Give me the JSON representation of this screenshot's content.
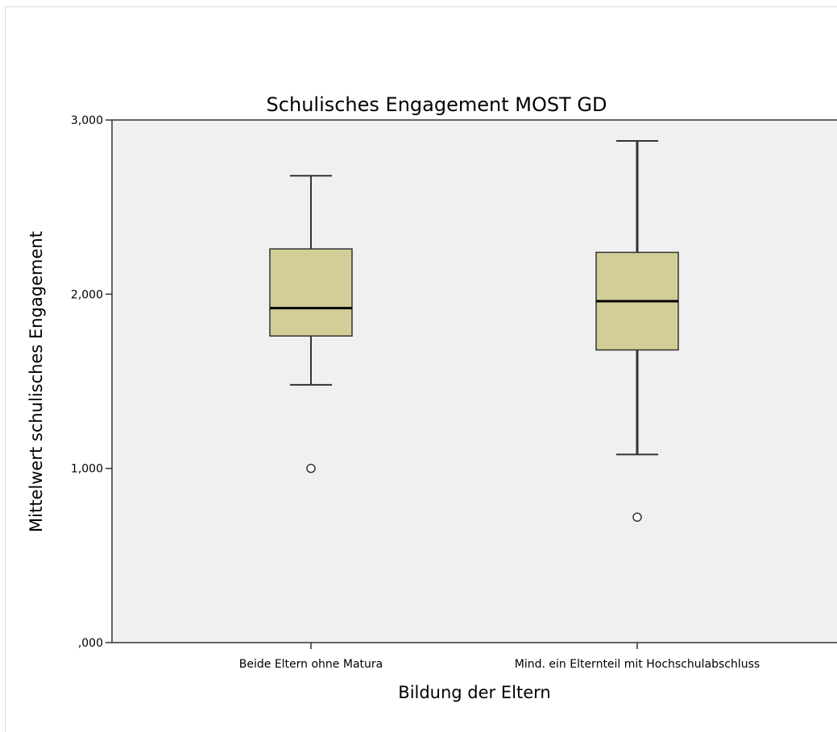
{
  "chart_data": {
    "type": "boxplot",
    "title": "Schulisches Engagement MOST GD",
    "xlabel": "Bildung der Eltern",
    "ylabel": "Mittelwert schulisches Engagement",
    "ylim": [
      0,
      3
    ],
    "y_ticks": [
      {
        "value": 0,
        "label": ",000"
      },
      {
        "value": 1,
        "label": "1,000"
      },
      {
        "value": 2,
        "label": "2,000"
      },
      {
        "value": 3,
        "label": "3,000"
      }
    ],
    "grid": false,
    "categories": [
      "Beide Eltern ohne Matura",
      "Mind. ein Elternteil mit Hochschulabschluss"
    ],
    "boxes": [
      {
        "category": "Beide Eltern ohne Matura",
        "whisker_low": 1.48,
        "q1": 1.76,
        "median": 1.92,
        "q3": 2.26,
        "whisker_high": 2.68,
        "outliers": [
          1.0
        ]
      },
      {
        "category": "Mind. ein Elternteil mit Hochschulabschluss",
        "whisker_low": 1.08,
        "q1": 1.68,
        "median": 1.96,
        "q3": 2.24,
        "whisker_high": 2.88,
        "outliers": [
          0.72
        ]
      }
    ],
    "colors": {
      "plot_background": "#f0f0f0",
      "box_fill": "#d3ce98",
      "box_stroke": "#333333",
      "axis": "#333333",
      "text": "#000000",
      "outlier_stroke": "#333333"
    }
  }
}
